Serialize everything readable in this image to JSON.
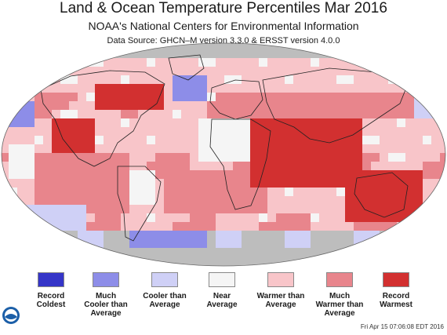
{
  "header": {
    "title": "Land & Ocean Temperature Percentiles Mar 2016",
    "subtitle": "NOAA's National Centers for Environmental Information",
    "source": "Data Source: GHCN–M version 3.3.0 & ERSST version 4.0.0"
  },
  "legend": [
    {
      "label": "Record\nColdest",
      "color": "#3535c8"
    },
    {
      "label": "Much\nCooler than\nAverage",
      "color": "#8d8de8"
    },
    {
      "label": "Cooler than\nAverage",
      "color": "#cfd0f6"
    },
    {
      "label": "Near\nAverage",
      "color": "#f5f5f5"
    },
    {
      "label": "Warmer than\nAverage",
      "color": "#f8c5c9"
    },
    {
      "label": "Much\nWarmer than\nAverage",
      "color": "#e8858c"
    },
    {
      "label": "Record\nWarmest",
      "color": "#d23030"
    }
  ],
  "colors": {
    "no_data": "#bdbdbd",
    "coastline": "#222222"
  },
  "logo": {
    "name": "noaa-logo",
    "color": "#1c5fa8"
  },
  "timestamp": "Fri Apr 15 07:06:08 EDT 2016"
}
